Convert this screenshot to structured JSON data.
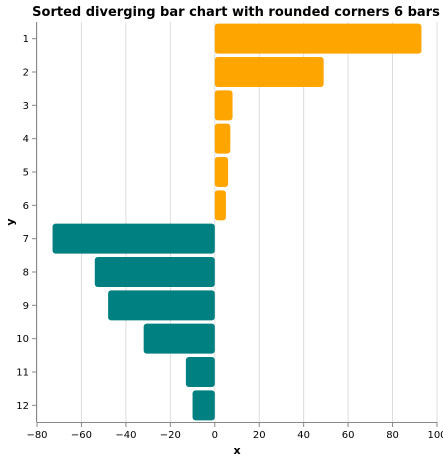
{
  "chart_data": {
    "type": "bar",
    "orientation": "horizontal",
    "title": "Sorted diverging bar chart with rounded corners 6 bars",
    "xlabel": "x",
    "ylabel": "y",
    "categories": [
      "1",
      "2",
      "3",
      "4",
      "5",
      "6",
      "7",
      "8",
      "9",
      "10",
      "11",
      "12"
    ],
    "values": [
      93,
      49,
      8,
      7,
      6,
      5,
      -73,
      -54,
      -48,
      -32,
      -13,
      -10
    ],
    "xlim": [
      -80,
      100
    ],
    "xticks": [
      -80,
      -60,
      -40,
      -20,
      0,
      20,
      40,
      60,
      80,
      100
    ],
    "grid": true,
    "colors": {
      "positive": "#ffa500",
      "negative": "#008080"
    }
  }
}
